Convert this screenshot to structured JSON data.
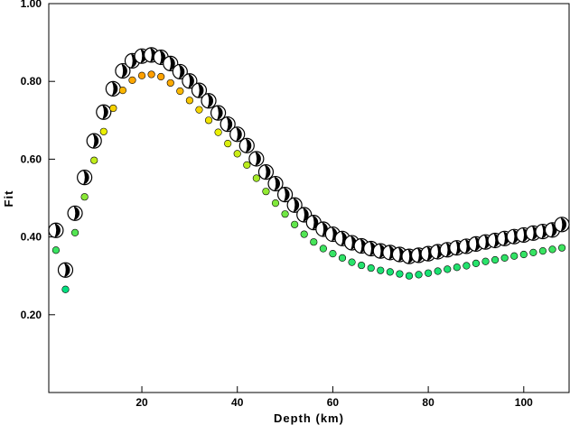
{
  "chart_data": {
    "type": "scatter",
    "title": "",
    "xlabel": "Depth (km)",
    "ylabel": "Fit",
    "xlim": [
      0.5,
      109.5
    ],
    "ylim": [
      0.0,
      1.0
    ],
    "x_ticks": [
      {
        "value": 20,
        "label": "20"
      },
      {
        "value": 40,
        "label": "40"
      },
      {
        "value": 60,
        "label": "60"
      },
      {
        "value": 80,
        "label": "80"
      },
      {
        "value": 100,
        "label": "100"
      }
    ],
    "y_ticks": [
      {
        "value": 0.2,
        "label": "0.20"
      },
      {
        "value": 0.4,
        "label": "0.40"
      },
      {
        "value": 0.6,
        "label": "0.60"
      },
      {
        "value": 0.8,
        "label": "0.80"
      },
      {
        "value": 1.0,
        "label": "1.00"
      }
    ],
    "grid": false,
    "series": [
      {
        "color_low": "#00e080",
        "color_high": "#ff9e00",
        "x": [
          2,
          4,
          6,
          8,
          10,
          12,
          14,
          16,
          18,
          20,
          22,
          24,
          26,
          28,
          30,
          32,
          34,
          36,
          38,
          40,
          42,
          44,
          46,
          48,
          50,
          52,
          54,
          56,
          58,
          60,
          62,
          64,
          66,
          68,
          70,
          72,
          74,
          76,
          78,
          80,
          82,
          84,
          86,
          88,
          90,
          92,
          94,
          96,
          98,
          100,
          102,
          104,
          106,
          108
        ],
        "y": [
          0.366,
          0.265,
          0.411,
          0.503,
          0.597,
          0.671,
          0.731,
          0.777,
          0.803,
          0.815,
          0.818,
          0.812,
          0.796,
          0.775,
          0.751,
          0.727,
          0.7,
          0.669,
          0.64,
          0.614,
          0.585,
          0.551,
          0.517,
          0.487,
          0.459,
          0.432,
          0.407,
          0.387,
          0.37,
          0.357,
          0.346,
          0.335,
          0.327,
          0.32,
          0.314,
          0.31,
          0.305,
          0.3,
          0.303,
          0.307,
          0.312,
          0.317,
          0.322,
          0.326,
          0.332,
          0.337,
          0.341,
          0.346,
          0.351,
          0.355,
          0.36,
          0.364,
          0.368,
          0.372
        ]
      }
    ],
    "mechanisms": {
      "x": [
        2,
        4,
        6,
        8,
        10,
        12,
        14,
        16,
        18,
        20,
        22,
        24,
        26,
        28,
        30,
        32,
        34,
        36,
        38,
        40,
        42,
        44,
        46,
        48,
        50,
        52,
        54,
        56,
        58,
        60,
        62,
        64,
        66,
        68,
        70,
        72,
        74,
        76,
        78,
        80,
        82,
        84,
        86,
        88,
        90,
        92,
        94,
        96,
        98,
        100,
        102,
        104,
        106,
        108
      ],
      "fit": [
        0.417,
        0.315,
        0.461,
        0.553,
        0.647,
        0.721,
        0.781,
        0.827,
        0.853,
        0.865,
        0.868,
        0.862,
        0.846,
        0.825,
        0.801,
        0.777,
        0.75,
        0.719,
        0.69,
        0.664,
        0.635,
        0.601,
        0.567,
        0.537,
        0.509,
        0.482,
        0.457,
        0.437,
        0.42,
        0.407,
        0.396,
        0.385,
        0.377,
        0.37,
        0.364,
        0.36,
        0.355,
        0.35,
        0.353,
        0.357,
        0.362,
        0.367,
        0.372,
        0.376,
        0.382,
        0.387,
        0.391,
        0.396,
        0.401,
        0.405,
        0.41,
        0.414,
        0.418,
        0.432
      ]
    }
  }
}
